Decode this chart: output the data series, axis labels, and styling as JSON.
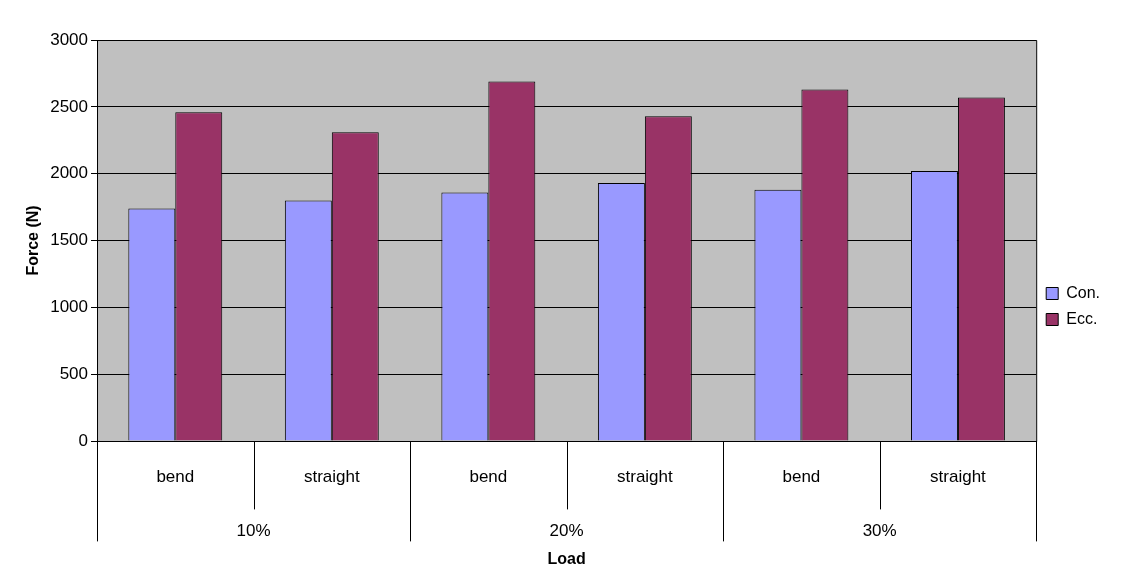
{
  "chart_data": {
    "type": "bar",
    "xlabel": "Load",
    "ylabel": "Force (N)",
    "categories": [
      "bend",
      "straight",
      "bend",
      "straight",
      "bend",
      "straight"
    ],
    "annotations": [
      "10%",
      "20%",
      "30%"
    ],
    "series": [
      {
        "name": "Con.",
        "color": "#9999ff",
        "values": [
          1740,
          1800,
          1860,
          1930,
          1880,
          2020
        ]
      },
      {
        "name": "Ecc.",
        "color": "#993366",
        "values": [
          2460,
          2310,
          2690,
          2430,
          2630,
          2570
        ]
      }
    ],
    "ylim": [
      0,
      3000
    ],
    "yticks": [
      0,
      500,
      1000,
      1500,
      2000,
      2500,
      3000
    ],
    "grid": "y",
    "legend": "right"
  }
}
